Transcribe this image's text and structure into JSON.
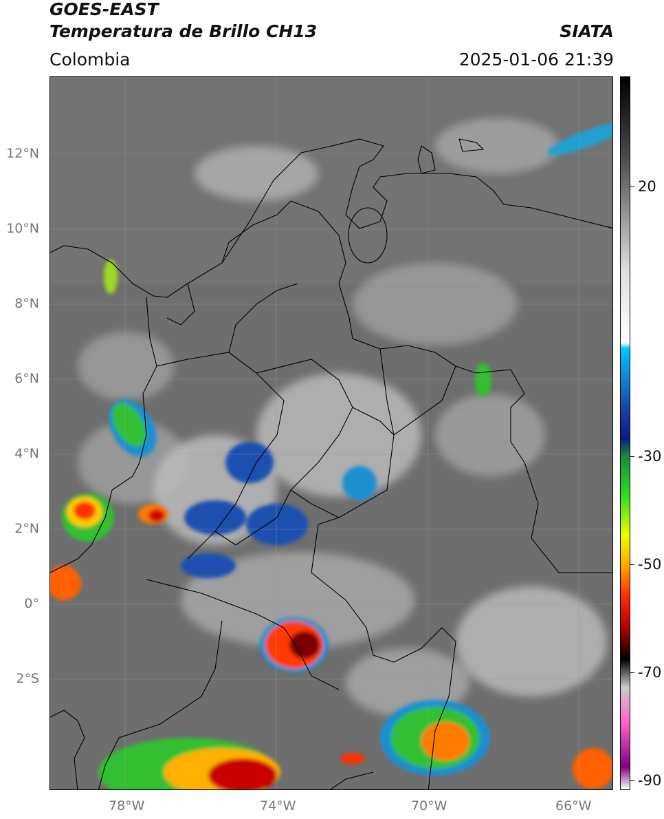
{
  "header": {
    "satellite": "GOES-EAST",
    "product": "Temperatura de Brillo CH13",
    "region": "Colombia",
    "brand": "SIATA",
    "timestamp": "2025-01-06 21:39"
  },
  "map": {
    "lat_labels": [
      "12°N",
      "10°N",
      "8°N",
      "6°N",
      "4°N",
      "2°N",
      "0°",
      "2°S"
    ],
    "lon_labels": [
      "78°W",
      "74°W",
      "70°W",
      "66°W"
    ],
    "extent": {
      "lon_min": -80,
      "lon_max": -65.1,
      "lat_min": -4.8,
      "lat_max": 14
    }
  },
  "colorbar": {
    "labels": [
      "20",
      "-30",
      "-50",
      "-70",
      "-90"
    ],
    "range": [
      -92,
      34
    ],
    "stops": [
      {
        "value": 34,
        "color": "#000000"
      },
      {
        "value": 20,
        "color": "#4a4a4a"
      },
      {
        "value": 0,
        "color": "#dddddd"
      },
      {
        "value": -13,
        "color": "#ffffff"
      },
      {
        "value": -14,
        "color": "#00c8ff"
      },
      {
        "value": -25,
        "color": "#1a3fa8"
      },
      {
        "value": -30,
        "color": "#0a1c80"
      },
      {
        "value": -33,
        "color": "#1a8a40"
      },
      {
        "value": -40,
        "color": "#2edc1e"
      },
      {
        "value": -47,
        "color": "#e8ff00"
      },
      {
        "value": -52,
        "color": "#ffb000"
      },
      {
        "value": -58,
        "color": "#ff2800"
      },
      {
        "value": -64,
        "color": "#a00000"
      },
      {
        "value": -69,
        "color": "#000000"
      },
      {
        "value": -74,
        "color": "#cccccc"
      },
      {
        "value": -80,
        "color": "#ff66cc"
      },
      {
        "value": -88,
        "color": "#800080"
      },
      {
        "value": -92,
        "color": "#ffffff"
      }
    ]
  }
}
